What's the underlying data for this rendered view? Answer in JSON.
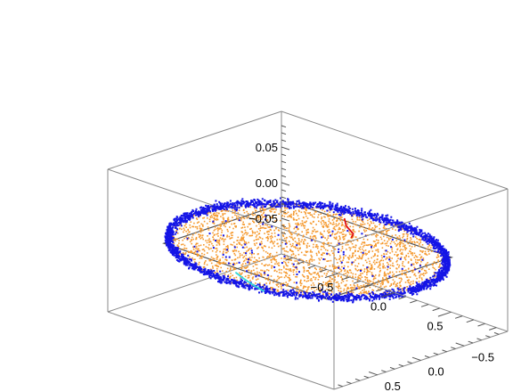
{
  "chart_data": {
    "type": "scatter",
    "projection": "3d-box",
    "title": "",
    "xlabel": "",
    "ylabel": "",
    "zlabel": "",
    "grid": false,
    "legend": "none",
    "x_range": [
      -1,
      1
    ],
    "y_range": [
      -1,
      1
    ],
    "z_range": [
      -0.1,
      0.1
    ],
    "x_ticks": [
      {
        "value": -0.5,
        "label": "−0.5"
      },
      {
        "value": 0.0,
        "label": "0.0"
      },
      {
        "value": 0.5,
        "label": "0.5"
      }
    ],
    "y_ticks": [
      {
        "value": -0.5,
        "label": "−0.5"
      },
      {
        "value": 0.0,
        "label": "0.0"
      },
      {
        "value": 0.5,
        "label": "0.5"
      }
    ],
    "z_ticks": [
      {
        "value": -0.05,
        "label": "−0.05"
      },
      {
        "value": 0.0,
        "label": "0.00"
      },
      {
        "value": 0.05,
        "label": "0.05"
      }
    ],
    "series": [
      {
        "kind": "points-ring",
        "color": "#1515e6",
        "radius_range": [
          0.85,
          1.0
        ],
        "count": 2600,
        "z_spread": 0.008
      },
      {
        "kind": "points-disk",
        "color": "#f5992e",
        "radius_range": [
          0.0,
          0.97
        ],
        "count": 2600,
        "z_spread": 0.006
      },
      {
        "kind": "points-disk-sparse",
        "color": "#1515e6",
        "radius_range": [
          0.0,
          0.85
        ],
        "count": 90,
        "z_spread": 0.006
      },
      {
        "kind": "curve",
        "color": "#e01010",
        "points": [
          [
            -0.25,
            -0.75,
            0.0
          ],
          [
            -0.15,
            -0.64,
            0.0
          ],
          [
            -0.02,
            -0.55,
            0.0
          ],
          [
            0.02,
            -0.48,
            0.0
          ]
        ]
      },
      {
        "kind": "curve",
        "color": "#30d8d8",
        "points": [
          [
            -0.02,
            0.8,
            0.0
          ],
          [
            0.1,
            0.86,
            0.0
          ],
          [
            0.22,
            0.91,
            0.0
          ],
          [
            0.34,
            0.95,
            0.0
          ]
        ]
      }
    ],
    "inner_square": {
      "half_size": 0.72,
      "color": "#555555"
    },
    "colors": {
      "box": "#8a8a8a",
      "ring": "#1515e6",
      "interior": "#f5992e",
      "curve_red": "#e01010",
      "curve_cyan": "#30d8d8"
    }
  }
}
